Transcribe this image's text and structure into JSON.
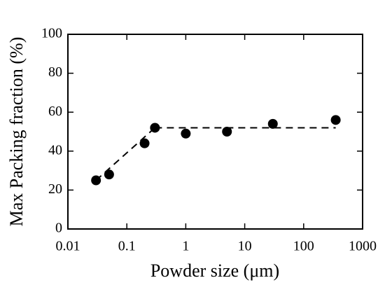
{
  "chart_data": {
    "type": "scatter",
    "x_label": "Powder size (μm)",
    "y_label": "Max Packing fraction (%)",
    "x": [
      0.03,
      0.05,
      0.2,
      0.3,
      1,
      5,
      30,
      350
    ],
    "values": [
      25,
      28,
      44,
      52,
      49,
      50,
      54,
      56
    ],
    "color": "#000000",
    "lines": [
      {
        "x": [
          0.03,
          0.3
        ],
        "values": [
          25,
          52
        ]
      },
      {
        "x": [
          0.3,
          350
        ],
        "values": [
          52,
          52
        ]
      }
    ],
    "line_style": "dashed",
    "x_log": true,
    "xlim": [
      0.01,
      1000
    ],
    "xticks": [
      0.01,
      0.1,
      1,
      10,
      100,
      1000
    ],
    "ylim": [
      0,
      100
    ],
    "yticks": [
      0,
      20,
      40,
      60,
      80,
      100
    ],
    "grid": false
  }
}
